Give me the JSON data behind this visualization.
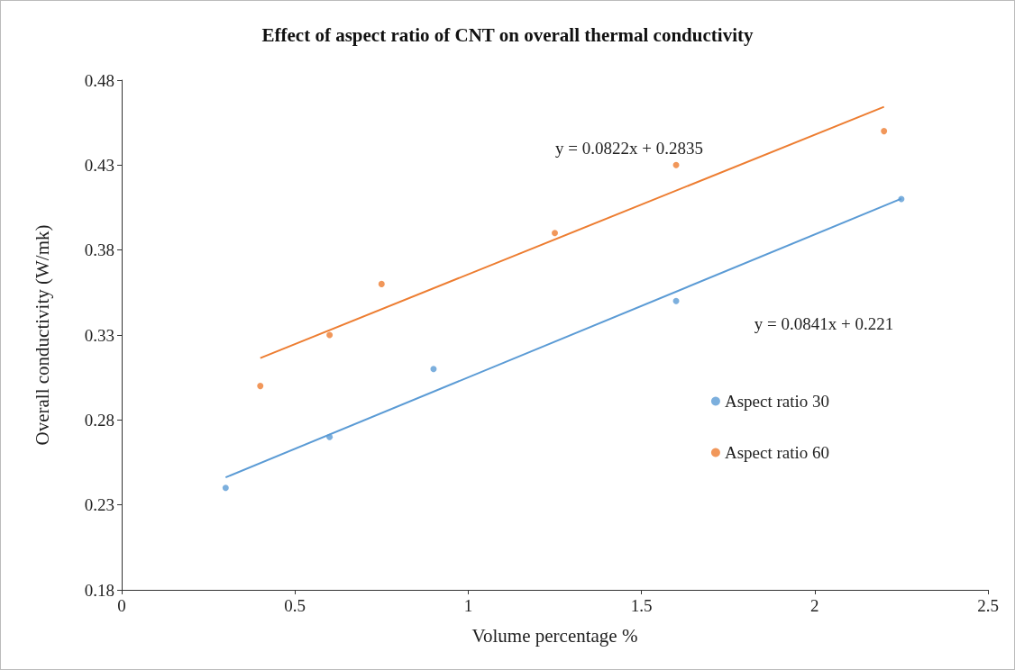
{
  "chart_data": {
    "type": "scatter",
    "title": "Effect of aspect ratio of CNT on overall thermal conductivity",
    "xlabel": "Volume percentage %",
    "ylabel": "Overall conductivity (W/mk)",
    "xlim": [
      0,
      2.5
    ],
    "xticks": [
      0,
      0.5,
      1,
      1.5,
      2,
      2.5
    ],
    "ylim": [
      0.18,
      0.48
    ],
    "yticks": [
      0.18,
      0.23,
      0.28,
      0.33,
      0.38,
      0.43,
      0.48
    ],
    "grid": false,
    "legend": "right",
    "series": [
      {
        "name": "Aspect ratio 30",
        "marker": "circle",
        "color": "#5b9bd5",
        "x": [
          0.3,
          0.6,
          0.9,
          1.6,
          2.25
        ],
        "values": [
          0.24,
          0.27,
          0.31,
          0.35,
          0.41
        ]
      },
      {
        "name": "Aspect ratio 60",
        "marker": "circle",
        "color": "#ed7d31",
        "x": [
          0.4,
          0.6,
          0.75,
          1.25,
          1.6,
          2.2
        ],
        "values": [
          0.3,
          0.33,
          0.36,
          0.39,
          0.43,
          0.45
        ]
      },
      {
        "type": "line",
        "marker": "none",
        "line_style": "solid",
        "color": "#ed7d31",
        "x": [
          0.4,
          2.2
        ],
        "values": [
          0.3164,
          0.4643
        ]
      },
      {
        "type": "line",
        "marker": "none",
        "line_style": "solid",
        "color": "#5b9bd5",
        "x": [
          0.3,
          2.25
        ],
        "values": [
          0.2462,
          0.4102
        ]
      }
    ],
    "annotations": [
      "y = 0.0822x + 0.2835",
      "y = 0.0841x + 0.221"
    ]
  }
}
